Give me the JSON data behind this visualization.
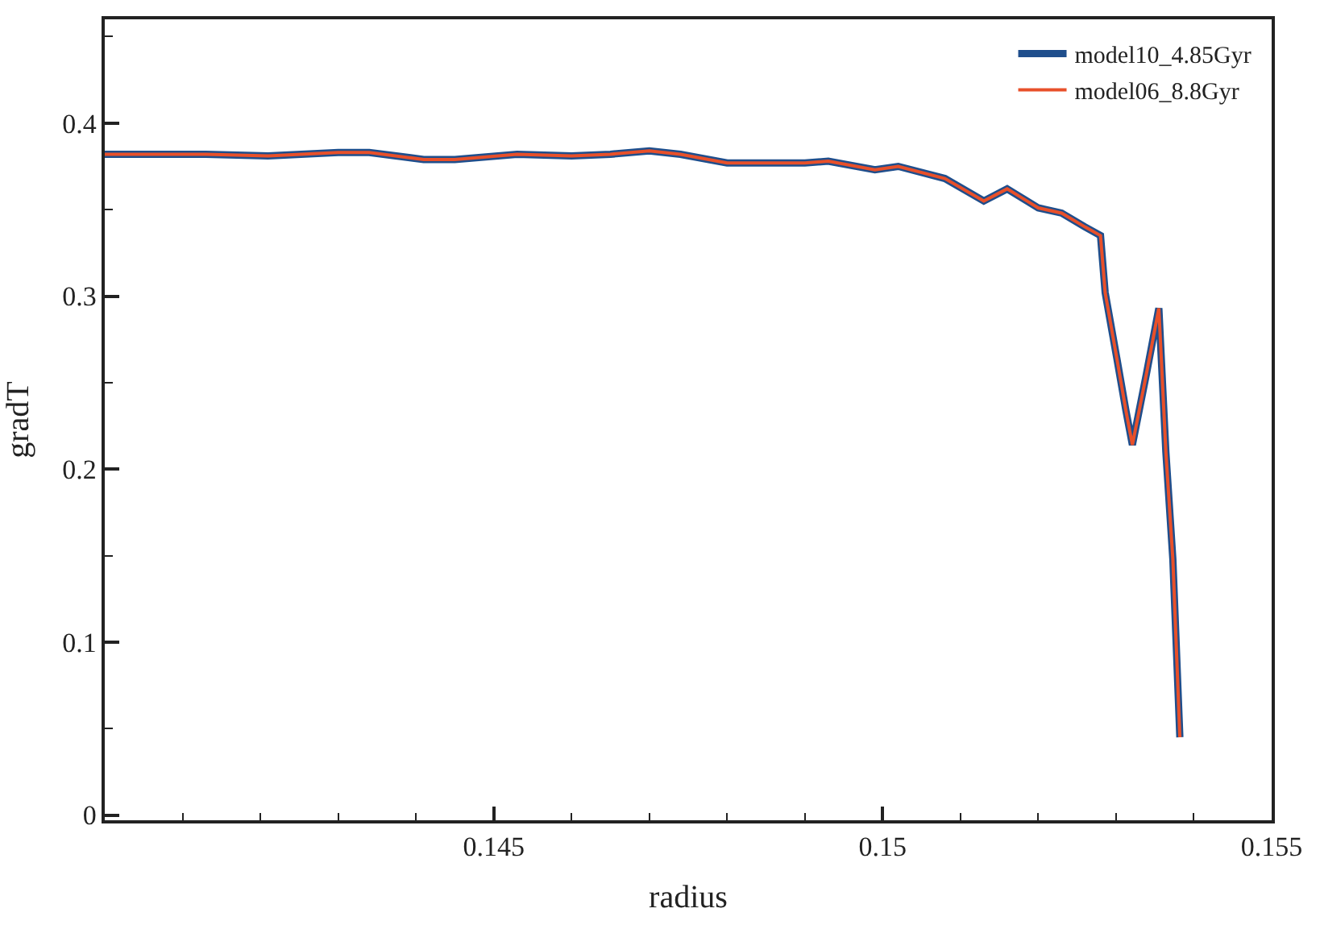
{
  "chart_data": {
    "type": "line",
    "xlabel": "radius",
    "ylabel": "gradT",
    "xlim": [
      0.14,
      0.155
    ],
    "ylim": [
      -0.003,
      0.46
    ],
    "xticks": [
      {
        "value": 0.141,
        "label": null
      },
      {
        "value": 0.142,
        "label": null
      },
      {
        "value": 0.143,
        "label": null
      },
      {
        "value": 0.144,
        "label": null
      },
      0.145,
      {
        "value": 0.146,
        "label": null
      },
      {
        "value": 0.147,
        "label": null
      },
      {
        "value": 0.148,
        "label": null
      },
      {
        "value": 0.149,
        "label": null
      },
      0.15,
      {
        "value": 0.151,
        "label": null
      },
      {
        "value": 0.152,
        "label": null
      },
      {
        "value": 0.153,
        "label": null
      },
      {
        "value": 0.154,
        "label": null
      },
      0.155
    ],
    "yticks": [
      0,
      {
        "value": 0.05,
        "label": null
      },
      0.1,
      {
        "value": 0.15,
        "label": null
      },
      0.2,
      {
        "value": 0.25,
        "label": null
      },
      0.3,
      {
        "value": 0.35,
        "label": null
      },
      0.4,
      {
        "value": 0.45,
        "label": null
      }
    ],
    "x": [
      0.14,
      0.1413,
      0.1421,
      0.143,
      0.1434,
      0.1441,
      0.1445,
      0.1453,
      0.146,
      0.1465,
      0.147,
      0.1474,
      0.148,
      0.149,
      0.1493,
      0.1499,
      0.1502,
      0.1508,
      0.1513,
      0.1516,
      0.152,
      0.1523,
      0.1526,
      0.1528,
      0.15286,
      0.15301,
      0.15313,
      0.15321,
      0.15339,
      0.15355,
      0.15364,
      0.15373,
      0.15382
    ],
    "series": [
      {
        "name": "model10_4.85Gyr",
        "color": "#1f4e8c",
        "values": [
          0.382,
          0.382,
          0.381,
          0.383,
          0.383,
          0.379,
          0.379,
          0.382,
          0.381,
          0.382,
          0.384,
          0.382,
          0.377,
          0.377,
          0.378,
          0.373,
          0.375,
          0.368,
          0.355,
          0.362,
          0.351,
          0.348,
          0.34,
          0.335,
          0.302,
          0.264,
          0.233,
          0.214,
          0.255,
          0.293,
          0.21,
          0.148,
          0.045
        ]
      },
      {
        "name": "model06_8.8Gyr",
        "color": "#e8502a",
        "values": [
          0.382,
          0.382,
          0.381,
          0.383,
          0.383,
          0.379,
          0.379,
          0.382,
          0.381,
          0.382,
          0.384,
          0.382,
          0.377,
          0.377,
          0.378,
          0.373,
          0.375,
          0.368,
          0.355,
          0.362,
          0.351,
          0.348,
          0.34,
          0.335,
          0.302,
          0.264,
          0.233,
          0.214,
          0.255,
          0.293,
          0.21,
          0.148,
          0.045
        ]
      }
    ],
    "legend": "top right",
    "marker": "none",
    "line_style": "solid"
  }
}
